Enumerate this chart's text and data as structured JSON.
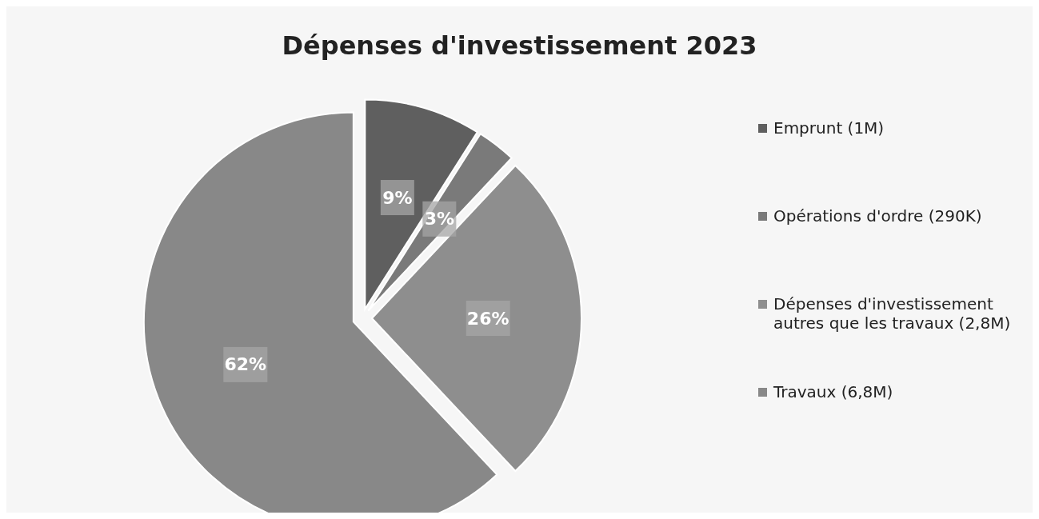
{
  "chart_data": {
    "type": "pie",
    "title": "Dépenses d'investissement 2023",
    "categories": [
      "Emprunt (1M)",
      "Opérations d'ordre (290K)",
      "Dépenses d'investissement autres que les travaux (2,8M)",
      "Travaux (6,8M)"
    ],
    "values": [
      9,
      3,
      26,
      62
    ],
    "colors": [
      "#5f5f5f",
      "#7a7a7a",
      "#8e8e8e",
      "#888888"
    ],
    "value_labels": [
      "9%",
      "3%",
      "26%",
      "62%"
    ],
    "legend": "right"
  }
}
